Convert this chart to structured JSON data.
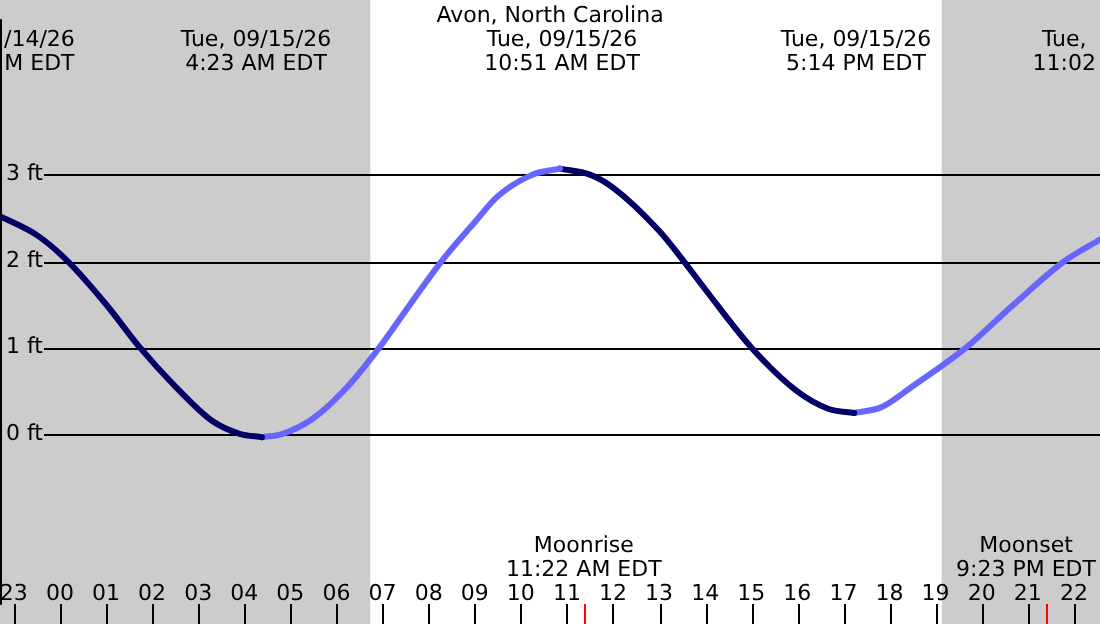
{
  "chart_data": {
    "type": "line",
    "title": "Avon, North Carolina",
    "xlim": [
      "--09-14T22:42",
      "--09-15T22:34"
    ],
    "ylim": [
      -1.98,
      4.8
    ],
    "xticks": [
      {
        "value": "--09-14T23:00",
        "label": "23"
      },
      {
        "value": "--09-15T00:00",
        "label": "00"
      },
      {
        "value": "--09-15T01:00",
        "label": "01"
      },
      {
        "value": "--09-15T02:00",
        "label": "02"
      },
      {
        "value": "--09-15T03:00",
        "label": "03"
      },
      {
        "value": "--09-15T04:00",
        "label": "04"
      },
      {
        "value": "--09-15T05:00",
        "label": "05"
      },
      {
        "value": "--09-15T06:00",
        "label": "06"
      },
      {
        "value": "--09-15T07:00",
        "label": "07"
      },
      {
        "value": "--09-15T08:00",
        "label": "08"
      },
      {
        "value": "--09-15T09:00",
        "label": "09"
      },
      {
        "value": "--09-15T10:00",
        "label": "10"
      },
      {
        "value": "--09-15T11:00",
        "label": "11"
      },
      {
        "value": "--09-15T12:00",
        "label": "12"
      },
      {
        "value": "--09-15T13:00",
        "label": "13"
      },
      {
        "value": "--09-15T14:00",
        "label": "14"
      },
      {
        "value": "--09-15T15:00",
        "label": "15"
      },
      {
        "value": "--09-15T16:00",
        "label": "16"
      },
      {
        "value": "--09-15T17:00",
        "label": "17"
      },
      {
        "value": "--09-15T18:00",
        "label": "18"
      },
      {
        "value": "--09-15T19:00",
        "label": "19"
      },
      {
        "value": "--09-15T20:00",
        "label": "20"
      },
      {
        "value": "--09-15T21:00",
        "label": "21"
      },
      {
        "value": "--09-15T22:00",
        "label": "22"
      }
    ],
    "yticks": [
      {
        "value": 0,
        "label": "0 ft"
      },
      {
        "value": 1,
        "label": "1 ft"
      },
      {
        "value": 2,
        "label": "2 ft"
      },
      {
        "value": 3,
        "label": "3 ft"
      }
    ],
    "grid": "y",
    "legend": false,
    "marker": "none",
    "line_style": "solid",
    "series": [
      {
        "color": "#000066",
        "x": [
          "--09-14T22:42",
          "--09-14T23:30",
          "--09-15T00:10",
          "--09-15T01:00",
          "--09-15T01:44",
          "--09-15T02:30",
          "--09-15T03:18",
          "--09-15T03:54",
          "--09-15T04:23"
        ],
        "values": [
          2.52,
          2.3,
          2.0,
          1.5,
          1.0,
          0.55,
          0.15,
          0.0,
          -0.04
        ]
      },
      {
        "color": "#6666ff",
        "x": [
          "--09-15T04:23",
          "--09-15T04:50",
          "--09-15T05:30",
          "--09-15T06:15",
          "--09-15T06:56",
          "--09-15T07:40",
          "--09-15T08:17",
          "--09-15T09:00",
          "--09-15T09:30",
          "--09-15T10:15",
          "--09-15T10:51"
        ],
        "values": [
          -0.04,
          0.0,
          0.18,
          0.55,
          1.0,
          1.55,
          2.0,
          2.45,
          2.75,
          3.0,
          3.07
        ]
      },
      {
        "color": "#000066",
        "x": [
          "--09-15T10:51",
          "--09-15T11:30",
          "--09-15T12:00",
          "--09-15T13:00",
          "--09-15T13:32",
          "--09-15T14:02",
          "--09-15T15:00",
          "--09-15T16:00",
          "--09-15T16:40",
          "--09-15T17:14"
        ],
        "values": [
          3.07,
          3.0,
          2.85,
          2.35,
          2.0,
          1.65,
          1.0,
          0.49,
          0.29,
          0.24
        ]
      },
      {
        "color": "#6666ff",
        "x": [
          "--09-15T17:14",
          "--09-15T17:50",
          "--09-15T18:30",
          "--09-15T19:40",
          "--09-15T20:42",
          "--09-15T21:48",
          "--09-15T22:34"
        ],
        "values": [
          0.24,
          0.31,
          0.55,
          1.0,
          1.5,
          2.0,
          2.25
        ]
      }
    ],
    "bands": [
      {
        "axis": "x",
        "from": "--09-14T22:42",
        "to": "--09-15T06:44",
        "color": "#cccccc"
      },
      {
        "axis": "x",
        "from": "--09-15T19:08",
        "to": "--09-15T22:34",
        "color": "#cccccc"
      }
    ],
    "ref_lines": [
      {
        "axis": "x",
        "value": "--09-15T11:22",
        "label": "Moonrise\n11:22 AM EDT",
        "color": "#ff0000"
      },
      {
        "axis": "x",
        "value": "--09-15T21:23",
        "label": "Moonset\n9:23 PM EDT",
        "color": "#ff0000"
      }
    ],
    "annotations": [
      "/14/26\nM EDT",
      "Tue, 09/15/26\n4:23 AM EDT",
      "Tue, 09/15/26\n10:51 AM EDT",
      "Tue, 09/15/26\n5:14 PM EDT",
      "Tue,\n11:02"
    ]
  }
}
